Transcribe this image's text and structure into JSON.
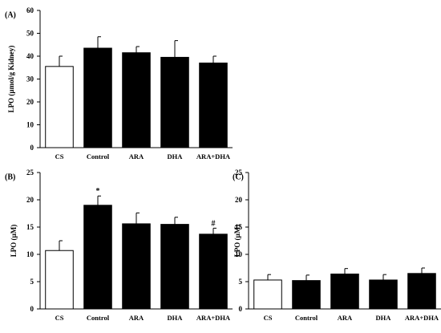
{
  "chart_data": [
    {
      "panel": "(A)",
      "type": "bar",
      "ylabel": "LPO (µmol/g Kidney)",
      "ylim": [
        0,
        60
      ],
      "yticks": [
        0,
        10,
        20,
        30,
        40,
        50,
        60
      ],
      "categories": [
        "CS",
        "Control",
        "ARA",
        "DHA",
        "ARA+DHA"
      ],
      "values": [
        35.5,
        43.5,
        41.5,
        39.5,
        37.0
      ],
      "errors": [
        4.5,
        5.0,
        2.7,
        7.3,
        3.0
      ],
      "annotations": [
        "",
        "",
        "",
        "",
        ""
      ],
      "colors": [
        "#ffffff",
        "#000000",
        "#000000",
        "#000000",
        "#000000"
      ]
    },
    {
      "panel": "(B)",
      "type": "bar",
      "ylabel": "LPO (µM)",
      "ylim": [
        0,
        25
      ],
      "yticks": [
        0,
        5,
        10,
        15,
        20,
        25
      ],
      "categories": [
        "CS",
        "Control",
        "ARA",
        "DHA",
        "ARA+DHA"
      ],
      "values": [
        10.7,
        19.0,
        15.6,
        15.5,
        13.7
      ],
      "errors": [
        1.8,
        1.7,
        2.0,
        1.3,
        1.1
      ],
      "annotations": [
        "",
        "*",
        "",
        "",
        "#"
      ],
      "colors": [
        "#ffffff",
        "#000000",
        "#000000",
        "#000000",
        "#000000"
      ]
    },
    {
      "panel": "(C)",
      "type": "bar",
      "ylabel": "LPO (µM)",
      "ylim": [
        0,
        25
      ],
      "yticks": [
        0,
        5,
        10,
        15,
        20,
        25
      ],
      "categories": [
        "CS",
        "Control",
        "ARA",
        "DHA",
        "ARA+DHA"
      ],
      "values": [
        5.3,
        5.2,
        6.4,
        5.3,
        6.5
      ],
      "errors": [
        1.0,
        1.0,
        1.0,
        1.0,
        1.0
      ],
      "annotations": [
        "",
        "",
        "",
        "",
        ""
      ],
      "colors": [
        "#ffffff",
        "#000000",
        "#000000",
        "#000000",
        "#000000"
      ]
    }
  ]
}
